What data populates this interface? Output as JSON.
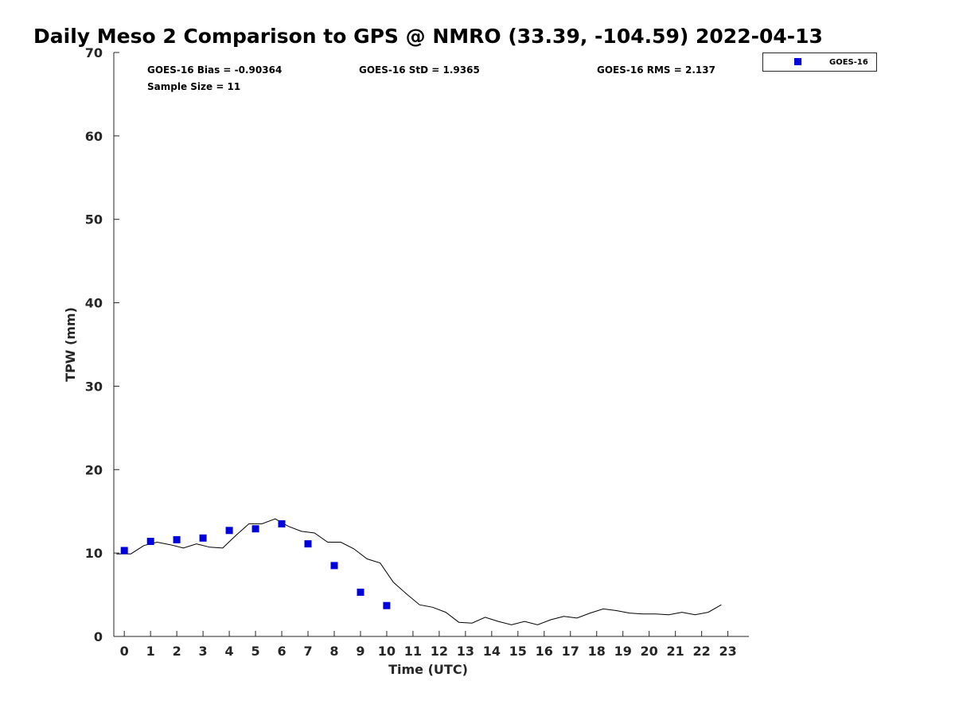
{
  "chart_data": {
    "type": "scatter",
    "title": "Daily Meso 2 Comparison to GPS @ NMRO (33.39, -104.59) 2022-04-13",
    "xlabel": "Time (UTC)",
    "ylabel": "TPW (mm)",
    "xlim": [
      -0.4,
      23.8
    ],
    "ylim": [
      0,
      70
    ],
    "xticks": [
      0,
      1,
      2,
      3,
      4,
      5,
      6,
      7,
      8,
      9,
      10,
      11,
      12,
      13,
      14,
      15,
      16,
      17,
      18,
      19,
      20,
      21,
      22,
      23
    ],
    "yticks": [
      0,
      10,
      20,
      30,
      40,
      50,
      60,
      70
    ],
    "grid": false,
    "legend_position": "top-right, outside plot",
    "series": [
      {
        "name": "GOES-16",
        "kind": "scatter",
        "marker": "square",
        "color": "#0000dd",
        "x": [
          0,
          1,
          2,
          3,
          4,
          5,
          6,
          7,
          8,
          9,
          10
        ],
        "y": [
          10.3,
          11.4,
          11.6,
          11.8,
          12.7,
          12.9,
          13.5,
          11.1,
          8.5,
          5.3,
          3.7
        ]
      },
      {
        "kind": "line",
        "color": "#000000",
        "x": [
          -0.3,
          0.25,
          0.75,
          1.25,
          1.75,
          2.25,
          2.75,
          3.25,
          3.75,
          4.25,
          4.75,
          5.25,
          5.75,
          6.25,
          6.75,
          7.25,
          7.75,
          8.25,
          8.75,
          9.25,
          9.75,
          10.25,
          10.75,
          11.25,
          11.75,
          12.25,
          12.75,
          13.25,
          13.75,
          14.25,
          14.75,
          15.25,
          15.75,
          16.25,
          16.75,
          17.25,
          17.75,
          18.25,
          18.75,
          19.25,
          19.75,
          20.25,
          20.75,
          21.25,
          21.75,
          22.25,
          22.75
        ],
        "y": [
          9.9,
          9.9,
          10.9,
          11.3,
          11.0,
          10.6,
          11.1,
          10.7,
          10.6,
          12.1,
          13.5,
          13.5,
          14.1,
          13.2,
          12.6,
          12.4,
          11.3,
          11.3,
          10.5,
          9.3,
          8.8,
          6.5,
          5.1,
          3.8,
          3.5,
          2.9,
          1.7,
          1.6,
          2.3,
          1.8,
          1.4,
          1.8,
          1.4,
          2.0,
          2.4,
          2.2,
          2.8,
          3.3,
          3.1,
          2.8,
          2.7,
          2.7,
          2.6,
          2.9,
          2.6,
          2.9,
          3.8
        ]
      }
    ],
    "annotations": {
      "bias": "GOES-16 Bias = -0.90364",
      "std": "GOES-16 StD = 1.9365",
      "rms": "GOES-16 RMS = 2.137",
      "sample": "Sample Size = 11"
    },
    "legend": {
      "entries": [
        "GOES-16"
      ]
    }
  }
}
